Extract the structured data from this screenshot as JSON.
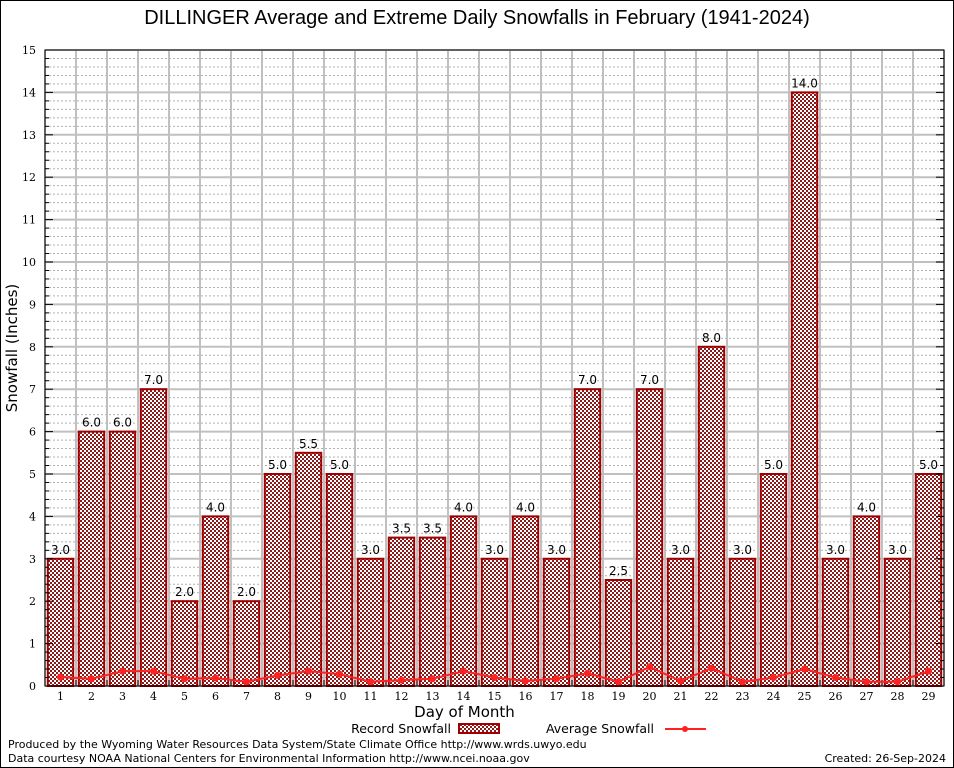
{
  "chart_data": {
    "type": "bar",
    "title": "DILLINGER Average and Extreme Daily Snowfalls in February (1941-2024)",
    "xlabel": "Day of Month",
    "ylabel": "Snowfall (Inches)",
    "ylim": [
      0,
      15
    ],
    "yticks": [
      0,
      1,
      2,
      3,
      4,
      5,
      6,
      7,
      8,
      9,
      10,
      11,
      12,
      13,
      14,
      15
    ],
    "grid": true,
    "legend_placement": "bottom",
    "categories": [
      "1",
      "2",
      "3",
      "4",
      "5",
      "6",
      "7",
      "8",
      "9",
      "10",
      "11",
      "12",
      "13",
      "14",
      "15",
      "16",
      "17",
      "18",
      "19",
      "20",
      "21",
      "22",
      "23",
      "24",
      "25",
      "26",
      "27",
      "28",
      "29"
    ],
    "series": [
      {
        "name": "Record Snowfall",
        "type": "bar",
        "color": "#8b0000",
        "values": [
          3.0,
          6.0,
          6.0,
          7.0,
          2.0,
          4.0,
          2.0,
          5.0,
          5.5,
          5.0,
          3.0,
          3.5,
          3.5,
          4.0,
          3.0,
          4.0,
          3.0,
          7.0,
          2.5,
          7.0,
          3.0,
          8.0,
          3.0,
          5.0,
          14.0,
          3.0,
          4.0,
          3.0,
          5.0
        ],
        "labels": [
          "3.0",
          "6.0",
          "6.0",
          "7.0",
          "2.0",
          "4.0",
          "2.0",
          "5.0",
          "5.5",
          "5.0",
          "3.0",
          "3.5",
          "3.5",
          "4.0",
          "3.0",
          "4.0",
          "3.0",
          "7.0",
          "2.5",
          "7.0",
          "3.0",
          "8.0",
          "3.0",
          "5.0",
          "14.0",
          "3.0",
          "4.0",
          "3.0",
          "5.0"
        ]
      },
      {
        "name": "Average Snowfall",
        "type": "line",
        "color": "#ff2020",
        "values": [
          0.21,
          0.17,
          0.35,
          0.35,
          0.17,
          0.19,
          0.1,
          0.25,
          0.35,
          0.28,
          0.1,
          0.14,
          0.17,
          0.35,
          0.2,
          0.12,
          0.17,
          0.3,
          0.1,
          0.45,
          0.12,
          0.42,
          0.1,
          0.2,
          0.4,
          0.2,
          0.1,
          0.1,
          0.35
        ]
      }
    ]
  },
  "footer": {
    "produced_by": "Produced by the Wyoming Water Resources Data System/State Climate Office http://www.wrds.uwyo.edu",
    "data_courtesy": "Data courtesy NOAA National Centers for Environmental Information http://www.ncei.noaa.gov",
    "created": "Created: 26-Sep-2024"
  }
}
